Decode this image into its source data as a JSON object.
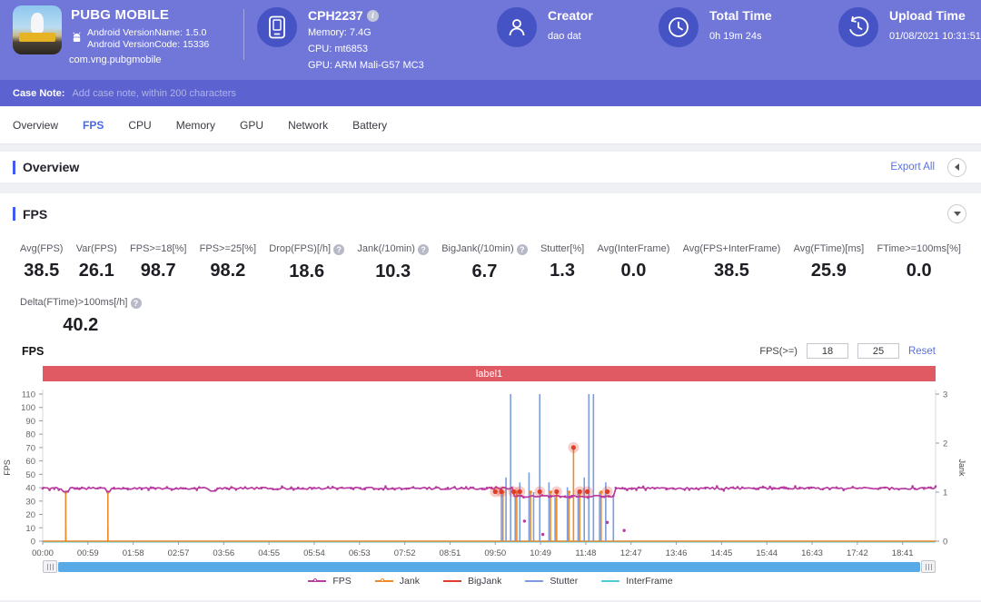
{
  "header": {
    "app": {
      "name": "PUBG MOBILE",
      "version_name": "Android VersionName: 1.5.0",
      "version_code": "Android VersionCode: 15336",
      "package": "com.vng.pubgmobile"
    },
    "device": {
      "model": "CPH2237",
      "memory": "Memory: 7.4G",
      "cpu": "CPU: mt6853",
      "gpu": "GPU: ARM Mali-G57 MC3"
    },
    "creator": {
      "label": "Creator",
      "value": "dao dat"
    },
    "total_time": {
      "label": "Total Time",
      "value": "0h 19m 24s"
    },
    "upload_time": {
      "label": "Upload Time",
      "value": "01/08/2021 10:31:51"
    }
  },
  "case_note": {
    "label": "Case Note:",
    "placeholder": "Add case note, within 200 characters"
  },
  "tabs": [
    {
      "label": "Overview",
      "active": false
    },
    {
      "label": "FPS",
      "active": true
    },
    {
      "label": "CPU",
      "active": false
    },
    {
      "label": "Memory",
      "active": false
    },
    {
      "label": "GPU",
      "active": false
    },
    {
      "label": "Network",
      "active": false
    },
    {
      "label": "Battery",
      "active": false
    }
  ],
  "overview_section": {
    "title": "Overview",
    "export_label": "Export All"
  },
  "fps_section": {
    "title": "FPS",
    "metrics": [
      {
        "label": "Avg(FPS)",
        "value": "38.5",
        "help": false
      },
      {
        "label": "Var(FPS)",
        "value": "26.1",
        "help": false
      },
      {
        "label": "FPS>=18[%]",
        "value": "98.7",
        "help": false
      },
      {
        "label": "FPS>=25[%]",
        "value": "98.2",
        "help": false
      },
      {
        "label": "Drop(FPS)[/h]",
        "value": "18.6",
        "help": true
      },
      {
        "label": "Jank(/10min)",
        "value": "10.3",
        "help": true
      },
      {
        "label": "BigJank(/10min)",
        "value": "6.7",
        "help": true
      },
      {
        "label": "Stutter[%]",
        "value": "1.3",
        "help": false
      },
      {
        "label": "Avg(InterFrame)",
        "value": "0.0",
        "help": false
      },
      {
        "label": "Avg(FPS+InterFrame)",
        "value": "38.5",
        "help": false
      },
      {
        "label": "Avg(FTime)[ms]",
        "value": "25.9",
        "help": false
      },
      {
        "label": "FTime>=100ms[%]",
        "value": "0.0",
        "help": false
      }
    ],
    "metrics_row2": [
      {
        "label": "Delta(FTime)>100ms[/h]",
        "value": "40.2",
        "help": true
      }
    ],
    "controls": {
      "chart_title": "FPS",
      "filter_label": "FPS(>=)",
      "input1": "18",
      "input2": "25",
      "reset_label": "Reset"
    }
  },
  "chart_data": {
    "type": "line",
    "banner_label": "label1",
    "banner_color": "#e05a64",
    "left_axis": {
      "label": "FPS",
      "min": 0,
      "max": 110,
      "step": 10
    },
    "right_axis": {
      "label": "Jank",
      "min": 0,
      "max": 3,
      "step": 1
    },
    "x_ticks": [
      "00:00",
      "00:59",
      "01:58",
      "02:57",
      "03:56",
      "04:55",
      "05:54",
      "06:53",
      "07:52",
      "08:51",
      "09:50",
      "10:49",
      "11:48",
      "12:47",
      "13:46",
      "14:45",
      "15:44",
      "16:43",
      "17:42",
      "18:41"
    ],
    "tick_interval_s": 59,
    "duration_s": 1164,
    "legend_position": "bottom",
    "series": [
      {
        "name": "FPS",
        "color": "#b93aa0",
        "axis": "left",
        "kind": "line",
        "marker": true,
        "baseline": 39.5,
        "noise": 1.6,
        "segments": [
          {
            "start_s": 614,
            "end_s": 745,
            "value": 33.5
          }
        ],
        "notches": [
          {
            "t": 30,
            "v": 37
          },
          {
            "t": 85,
            "v": 37
          },
          {
            "t": 222,
            "v": 37.5
          }
        ],
        "outliers": [
          {
            "t": 628,
            "v": 15
          },
          {
            "t": 652,
            "v": 5
          },
          {
            "t": 736,
            "v": 14
          },
          {
            "t": 758,
            "v": 8
          }
        ]
      },
      {
        "name": "Jank",
        "color": "#ee8a26",
        "axis": "right",
        "kind": "spikes",
        "marker": true,
        "spikes": [
          {
            "t": 30,
            "v": 1
          },
          {
            "t": 85,
            "v": 1
          },
          {
            "t": 600,
            "v": 1
          },
          {
            "t": 618,
            "v": 1
          },
          {
            "t": 636,
            "v": 1
          },
          {
            "t": 662,
            "v": 1
          },
          {
            "t": 670,
            "v": 1
          },
          {
            "t": 686,
            "v": 1
          },
          {
            "t": 692,
            "v": 1.9
          },
          {
            "t": 700,
            "v": 1
          },
          {
            "t": 728,
            "v": 1
          }
        ]
      },
      {
        "name": "BigJank",
        "color": "#e03c2a",
        "axis": "left",
        "kind": "points",
        "points": [
          {
            "t": 590,
            "v": 37
          },
          {
            "t": 598,
            "v": 37
          },
          {
            "t": 614,
            "v": 37
          },
          {
            "t": 622,
            "v": 37
          },
          {
            "t": 648,
            "v": 37
          },
          {
            "t": 670,
            "v": 37
          },
          {
            "t": 692,
            "v": 70
          },
          {
            "t": 700,
            "v": 37
          },
          {
            "t": 710,
            "v": 37
          },
          {
            "t": 736,
            "v": 37
          }
        ]
      },
      {
        "name": "Stutter",
        "color": "#7b9ce0",
        "axis": "right",
        "kind": "spikes",
        "marker": false,
        "spikes": [
          {
            "t": 30,
            "v": 0.28
          },
          {
            "t": 85,
            "v": 0.28
          },
          {
            "t": 598,
            "v": 1.1
          },
          {
            "t": 604,
            "v": 1.3
          },
          {
            "t": 610,
            "v": 3
          },
          {
            "t": 616,
            "v": 0.9
          },
          {
            "t": 622,
            "v": 1.2
          },
          {
            "t": 634,
            "v": 1.4
          },
          {
            "t": 640,
            "v": 1.0
          },
          {
            "t": 648,
            "v": 3
          },
          {
            "t": 660,
            "v": 1.2
          },
          {
            "t": 668,
            "v": 0.9
          },
          {
            "t": 684,
            "v": 1.1
          },
          {
            "t": 698,
            "v": 1.0
          },
          {
            "t": 706,
            "v": 1.3
          },
          {
            "t": 712,
            "v": 3
          },
          {
            "t": 718,
            "v": 3
          },
          {
            "t": 726,
            "v": 1.0
          },
          {
            "t": 734,
            "v": 1.2
          },
          {
            "t": 744,
            "v": 0.9
          }
        ]
      },
      {
        "name": "InterFrame",
        "color": "#4ecbdd",
        "axis": "left",
        "kind": "baseline",
        "value": 0
      }
    ]
  }
}
